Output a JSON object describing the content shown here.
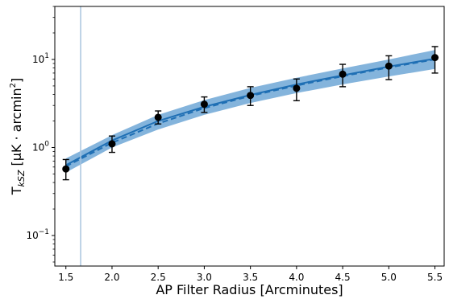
{
  "chart_data": {
    "type": "line",
    "xlabel": "AP Filter Radius [Arcminutes]",
    "ylabel": {
      "prefix": "T",
      "sub": "kSZ",
      "mid": " [μK · arcmin",
      "sup": "2",
      "suffix": "]"
    },
    "x_ticks": [
      1.5,
      2.0,
      2.5,
      3.0,
      3.5,
      4.0,
      4.5,
      5.0,
      5.5
    ],
    "x_tick_labels": [
      "1.5",
      "2.0",
      "2.5",
      "3.0",
      "3.5",
      "4.0",
      "4.5",
      "5.0",
      "5.5"
    ],
    "y_scale": "log",
    "y_ticks": [
      0.1,
      1,
      10
    ],
    "y_tick_labels": [
      {
        "base": "10",
        "exp": "−1"
      },
      {
        "base": "10",
        "exp": "0"
      },
      {
        "base": "10",
        "exp": "1"
      }
    ],
    "xlim": [
      1.38,
      5.6
    ],
    "ylim": [
      0.045,
      40
    ],
    "vertical_line_x": 1.66,
    "grid": false,
    "points": [
      {
        "x": 1.5,
        "y": 0.57,
        "lo": 0.43,
        "hi": 0.73
      },
      {
        "x": 2.0,
        "y": 1.1,
        "lo": 0.88,
        "hi": 1.35
      },
      {
        "x": 2.5,
        "y": 2.2,
        "lo": 1.85,
        "hi": 2.6
      },
      {
        "x": 3.0,
        "y": 3.1,
        "lo": 2.5,
        "hi": 3.75
      },
      {
        "x": 3.5,
        "y": 3.9,
        "lo": 3.0,
        "hi": 4.9
      },
      {
        "x": 4.0,
        "y": 4.7,
        "lo": 3.4,
        "hi": 6.0
      },
      {
        "x": 4.5,
        "y": 6.8,
        "lo": 4.9,
        "hi": 8.8
      },
      {
        "x": 5.0,
        "y": 8.4,
        "lo": 5.9,
        "hi": 11.0
      },
      {
        "x": 5.5,
        "y": 10.5,
        "lo": 7.0,
        "hi": 14.0
      }
    ],
    "model_solid": [
      {
        "x": 1.5,
        "y": 0.63
      },
      {
        "x": 2.0,
        "y": 1.2
      },
      {
        "x": 2.5,
        "y": 2.0
      },
      {
        "x": 3.0,
        "y": 2.9
      },
      {
        "x": 3.5,
        "y": 3.95
      },
      {
        "x": 4.0,
        "y": 5.2
      },
      {
        "x": 4.5,
        "y": 6.6
      },
      {
        "x": 5.0,
        "y": 8.3
      },
      {
        "x": 5.5,
        "y": 10.2
      }
    ],
    "model_dashed": [
      {
        "x": 1.5,
        "y": 0.61
      },
      {
        "x": 2.0,
        "y": 1.13
      },
      {
        "x": 2.5,
        "y": 1.87
      },
      {
        "x": 3.0,
        "y": 2.8
      },
      {
        "x": 3.5,
        "y": 3.85
      },
      {
        "x": 4.0,
        "y": 5.05
      },
      {
        "x": 4.5,
        "y": 6.45
      },
      {
        "x": 5.0,
        "y": 8.1
      },
      {
        "x": 5.5,
        "y": 10.0
      }
    ],
    "band": [
      {
        "x": 1.5,
        "lo": 0.52,
        "hi": 0.75
      },
      {
        "x": 2.0,
        "lo": 1.0,
        "hi": 1.38
      },
      {
        "x": 2.5,
        "lo": 1.6,
        "hi": 2.35
      },
      {
        "x": 3.0,
        "lo": 2.35,
        "hi": 3.45
      },
      {
        "x": 3.5,
        "lo": 3.2,
        "hi": 4.75
      },
      {
        "x": 4.0,
        "lo": 4.15,
        "hi": 6.2
      },
      {
        "x": 4.5,
        "lo": 5.2,
        "hi": 7.9
      },
      {
        "x": 5.0,
        "lo": 6.4,
        "hi": 10.0
      },
      {
        "x": 5.5,
        "lo": 7.8,
        "hi": 12.8
      }
    ],
    "colors": {
      "band": "#5b9bd0",
      "model_line": "#1f6fb4",
      "vline": "#a8c4de",
      "points": "#000000"
    }
  }
}
